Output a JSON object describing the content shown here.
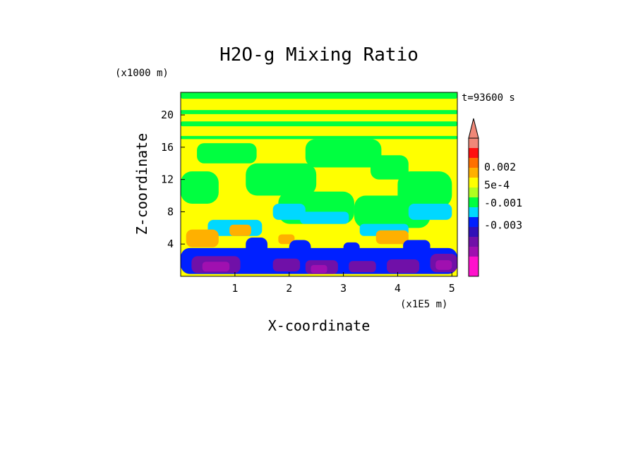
{
  "chart_data": {
    "type": "heatmap",
    "title": "H2O-g Mixing Ratio",
    "xlabel": "X-coordinate",
    "ylabel": "Z-coordinate",
    "x_unit": "(x1E5 m)",
    "y_unit": "(x1000 m)",
    "time_label": "t=93600 s",
    "xlim": [
      0,
      5.1
    ],
    "ylim": [
      0,
      22.8
    ],
    "x_ticks": [
      {
        "value": 1,
        "label": "1"
      },
      {
        "value": 2,
        "label": "2"
      },
      {
        "value": 3,
        "label": "3"
      },
      {
        "value": 4,
        "label": "4"
      },
      {
        "value": 5,
        "label": "5"
      }
    ],
    "y_ticks": [
      {
        "value": 4,
        "label": "4"
      },
      {
        "value": 8,
        "label": "8"
      },
      {
        "value": 12,
        "label": "12"
      },
      {
        "value": 16,
        "label": "16"
      },
      {
        "value": 20,
        "label": "20"
      }
    ],
    "colorbar": {
      "colors": [
        "#ff11cc",
        "#ff11cc",
        "#a010b0",
        "#7010a8",
        "#3010b8",
        "#0020ff",
        "#00d8ff",
        "#00ff40",
        "#b0ff20",
        "#ffff00",
        "#ffb000",
        "#ff7000",
        "#ff1010",
        "#f08878"
      ],
      "labels": [
        "0.002",
        "5e-4",
        "-0.001",
        "-0.003"
      ],
      "label_positions": [
        0.79,
        0.66,
        0.53,
        0.37
      ],
      "extend_top": true
    },
    "background_color": "#ffff00",
    "field_layers": [
      {
        "color": "#00ff40",
        "description": "bands",
        "blobs": [
          [
            0.0,
            18.6,
            5.1,
            19.2
          ],
          [
            0.0,
            17.0,
            5.1,
            17.4
          ],
          [
            0.0,
            20.1,
            5.1,
            20.6
          ],
          [
            0.0,
            22.0,
            5.1,
            22.8
          ]
        ]
      },
      {
        "color": "#00ff40",
        "blobs": [
          [
            0.3,
            14.0,
            1.4,
            16.5
          ],
          [
            2.3,
            13.5,
            3.7,
            17.0
          ],
          [
            3.5,
            12.0,
            4.2,
            15.0
          ],
          [
            1.2,
            10.0,
            2.5,
            14.0
          ],
          [
            4.0,
            8.5,
            5.0,
            13.0
          ],
          [
            0.0,
            9.0,
            0.7,
            13.0
          ],
          [
            1.8,
            6.5,
            3.2,
            10.5
          ],
          [
            3.2,
            6.0,
            4.6,
            10.0
          ]
        ]
      },
      {
        "color": "#00d8ff",
        "blobs": [
          [
            1.7,
            7.0,
            2.3,
            9.0
          ],
          [
            2.2,
            6.5,
            3.1,
            8.0
          ],
          [
            4.2,
            7.0,
            5.0,
            9.0
          ],
          [
            0.5,
            5.0,
            1.5,
            7.0
          ],
          [
            3.3,
            5.0,
            4.2,
            6.5
          ]
        ]
      },
      {
        "color": "#ffb000",
        "blobs": [
          [
            0.1,
            3.6,
            0.7,
            5.8
          ],
          [
            0.9,
            5.0,
            1.3,
            6.4
          ],
          [
            3.6,
            4.0,
            4.2,
            5.7
          ],
          [
            1.8,
            4.0,
            2.1,
            5.2
          ]
        ]
      },
      {
        "color": "#0020ff",
        "blobs": [
          [
            0.0,
            0.3,
            5.1,
            3.5
          ],
          [
            1.2,
            2.5,
            1.6,
            4.8
          ],
          [
            2.0,
            2.0,
            2.4,
            4.5
          ],
          [
            3.0,
            2.5,
            3.3,
            4.2
          ],
          [
            4.1,
            2.5,
            4.6,
            4.5
          ]
        ]
      },
      {
        "color": "#7010a8",
        "blobs": [
          [
            0.2,
            0.4,
            1.1,
            2.5
          ],
          [
            1.7,
            0.6,
            2.2,
            2.2
          ],
          [
            2.3,
            0.3,
            2.9,
            2.0
          ],
          [
            3.1,
            0.5,
            3.6,
            1.9
          ],
          [
            3.8,
            0.4,
            4.4,
            2.1
          ],
          [
            4.6,
            0.5,
            5.1,
            2.8
          ]
        ]
      },
      {
        "color": "#a010b0",
        "blobs": [
          [
            0.4,
            0.6,
            0.9,
            1.8
          ],
          [
            2.4,
            0.4,
            2.7,
            1.4
          ],
          [
            4.7,
            0.8,
            5.0,
            2.0
          ]
        ]
      }
    ]
  }
}
